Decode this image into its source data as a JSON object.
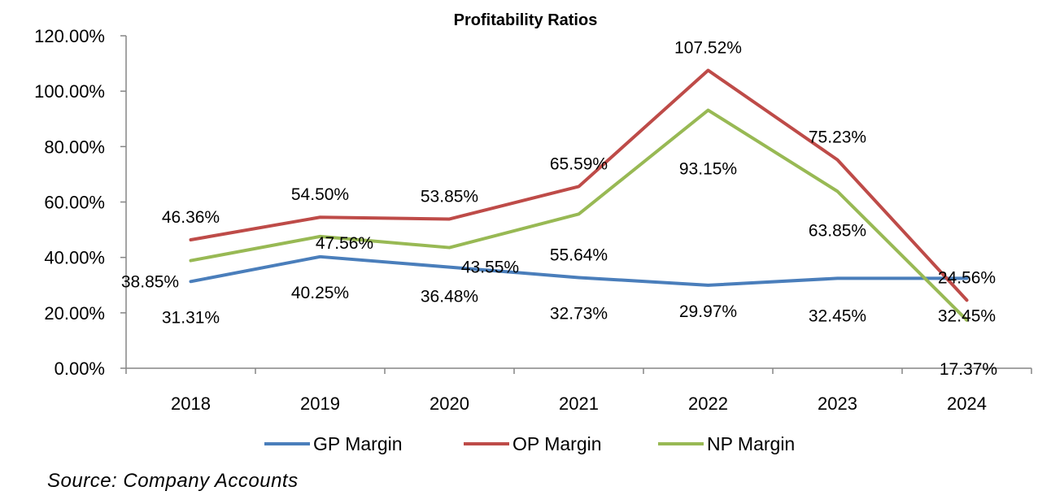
{
  "chart_data": {
    "type": "line",
    "title": "Profitability Ratios",
    "categories": [
      "2018",
      "2019",
      "2020",
      "2021",
      "2022",
      "2023",
      "2024"
    ],
    "ylim": [
      0,
      120
    ],
    "yticks": [
      "0.00%",
      "20.00%",
      "40.00%",
      "60.00%",
      "80.00%",
      "100.00%",
      "120.00%"
    ],
    "grid": false,
    "legend_position": "bottom",
    "series": [
      {
        "name": "GP Margin",
        "color": "#4a7ebb",
        "values": [
          31.31,
          40.25,
          36.48,
          32.73,
          29.97,
          32.45,
          32.45
        ],
        "labels": [
          "31.31%",
          "40.25%",
          "36.48%",
          "32.73%",
          "29.97%",
          "32.45%",
          "32.45%"
        ]
      },
      {
        "name": "OP Margin",
        "color": "#be4b48",
        "values": [
          46.36,
          54.5,
          53.85,
          65.59,
          107.52,
          75.23,
          24.56
        ],
        "labels": [
          "46.36%",
          "54.50%",
          "53.85%",
          "65.59%",
          "107.52%",
          "75.23%",
          "24.56%"
        ]
      },
      {
        "name": "NP Margin",
        "color": "#98b954",
        "values": [
          38.85,
          47.56,
          43.55,
          55.64,
          93.15,
          63.85,
          17.37
        ],
        "labels": [
          "38.85%",
          "47.56%",
          "43.55%",
          "55.64%",
          "93.15%",
          "63.85%",
          "17.37%"
        ]
      }
    ]
  },
  "source_note": "Source: Company Accounts"
}
